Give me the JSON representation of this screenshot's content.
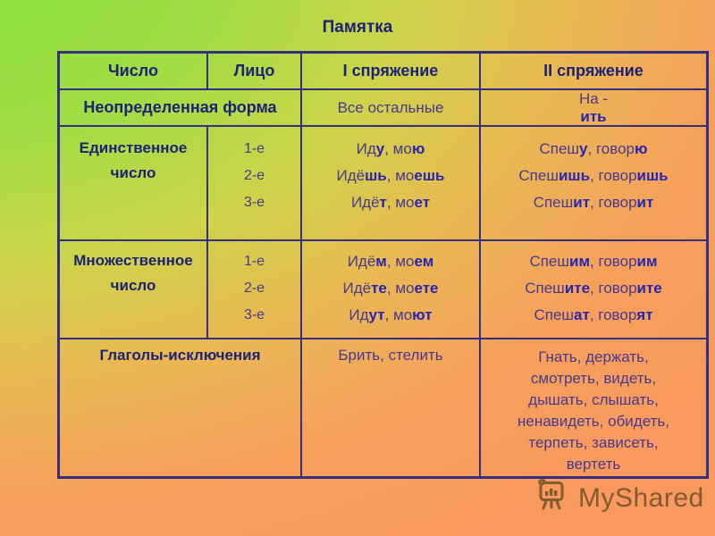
{
  "title": "Памятка",
  "colors": {
    "bg_green": "#8be13e",
    "bg_orange": "#f9995f",
    "table_border": "#352f80",
    "heading_text": "#1c2274",
    "body_text": "#463a8e",
    "ending_bold_text": "#2626ae",
    "watermark_text": "#6b5226"
  },
  "table": {
    "headers": [
      "Число",
      "Лицо",
      "I спряжение",
      "II спряжение"
    ],
    "infinitive_row": {
      "label": "Неопределенная форма",
      "spr1": "Все остальные",
      "spr2": [
        {
          "t": "На - "
        },
        {
          "t": "ить",
          "b": true
        }
      ]
    },
    "singular_row": {
      "label": "Единственное число",
      "persons": [
        "1-е",
        "2-е",
        "3-е"
      ],
      "spr1": [
        [
          {
            "t": "Ид"
          },
          {
            "t": "у",
            "b": true
          },
          {
            "t": ", мо"
          },
          {
            "t": "ю",
            "b": true
          }
        ],
        [
          {
            "t": "Идё"
          },
          {
            "t": "шь",
            "b": true
          },
          {
            "t": ", мо"
          },
          {
            "t": "ешь",
            "b": true
          }
        ],
        [
          {
            "t": "Идё"
          },
          {
            "t": "т",
            "b": true
          },
          {
            "t": ", мо"
          },
          {
            "t": "ет",
            "b": true
          }
        ]
      ],
      "spr2": [
        [
          {
            "t": "Спеш"
          },
          {
            "t": "у",
            "b": true
          },
          {
            "t": ", говор"
          },
          {
            "t": "ю",
            "b": true
          }
        ],
        [
          {
            "t": "Спеш"
          },
          {
            "t": "ишь",
            "b": true
          },
          {
            "t": ", говор"
          },
          {
            "t": "ишь",
            "b": true
          }
        ],
        [
          {
            "t": "Спеш"
          },
          {
            "t": "ит",
            "b": true
          },
          {
            "t": ", говор"
          },
          {
            "t": "ит",
            "b": true
          }
        ]
      ]
    },
    "plural_row": {
      "label": "Множественное число",
      "persons": [
        "1-е",
        "2-е",
        "3-е"
      ],
      "spr1": [
        [
          {
            "t": "Идё"
          },
          {
            "t": "м",
            "b": true
          },
          {
            "t": ", мо"
          },
          {
            "t": "ем",
            "b": true
          }
        ],
        [
          {
            "t": "Идё"
          },
          {
            "t": "те",
            "b": true
          },
          {
            "t": ", мо"
          },
          {
            "t": "ете",
            "b": true
          }
        ],
        [
          {
            "t": "Ид"
          },
          {
            "t": "ут",
            "b": true
          },
          {
            "t": ", мо"
          },
          {
            "t": "ют",
            "b": true
          }
        ]
      ],
      "spr2": [
        [
          {
            "t": "Спеш"
          },
          {
            "t": "им",
            "b": true
          },
          {
            "t": ", говор"
          },
          {
            "t": "им",
            "b": true
          }
        ],
        [
          {
            "t": "Спеш"
          },
          {
            "t": "ите",
            "b": true
          },
          {
            "t": ", говор"
          },
          {
            "t": "ите",
            "b": true
          }
        ],
        [
          {
            "t": "Спеш"
          },
          {
            "t": "ат",
            "b": true
          },
          {
            "t": ", говор"
          },
          {
            "t": "ят",
            "b": true
          }
        ]
      ]
    },
    "exceptions_row": {
      "label": "Глаголы-исключения",
      "spr1": "Брить, стелить",
      "spr2_lines": [
        "Гнать, держать,",
        "смотреть, видеть,",
        "дышать, слышать,",
        "ненавидеть, обидеть,",
        "терпеть, зависеть,",
        "вертеть"
      ]
    }
  },
  "watermark": {
    "text": "MyShared",
    "icon": "easel-chart-icon"
  }
}
